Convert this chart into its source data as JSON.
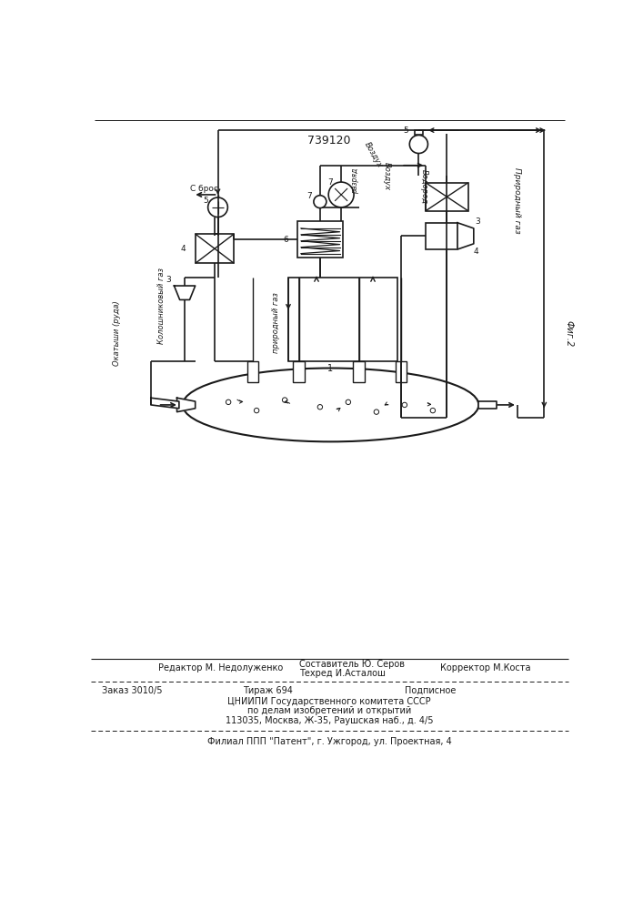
{
  "patent_number": "739120",
  "fig_label": "Фиг.2",
  "background_color": "#ffffff",
  "line_color": "#1a1a1a",
  "editor_line": "Редактор М. Недолуженко",
  "composer_line1": "Составитель Ю. Серов",
  "composer_line2": "Техред И.Асталош",
  "corrector_line": "Корректор М.Коста",
  "order_line": "Заказ 3010/5",
  "edition_line": "Тираж 694",
  "subscription_line": "Подписное",
  "institute_line1": "ЦНИИПИ Государственного комитета СССР",
  "institute_line2": "по делам изобретений и открытий",
  "institute_line3": "113035, Москва, Ж-35, Раушская наб., д. 4/5",
  "filial_line": "Филиал ППП \"Патент\", г. Ужгород, ул. Проектная, 4"
}
